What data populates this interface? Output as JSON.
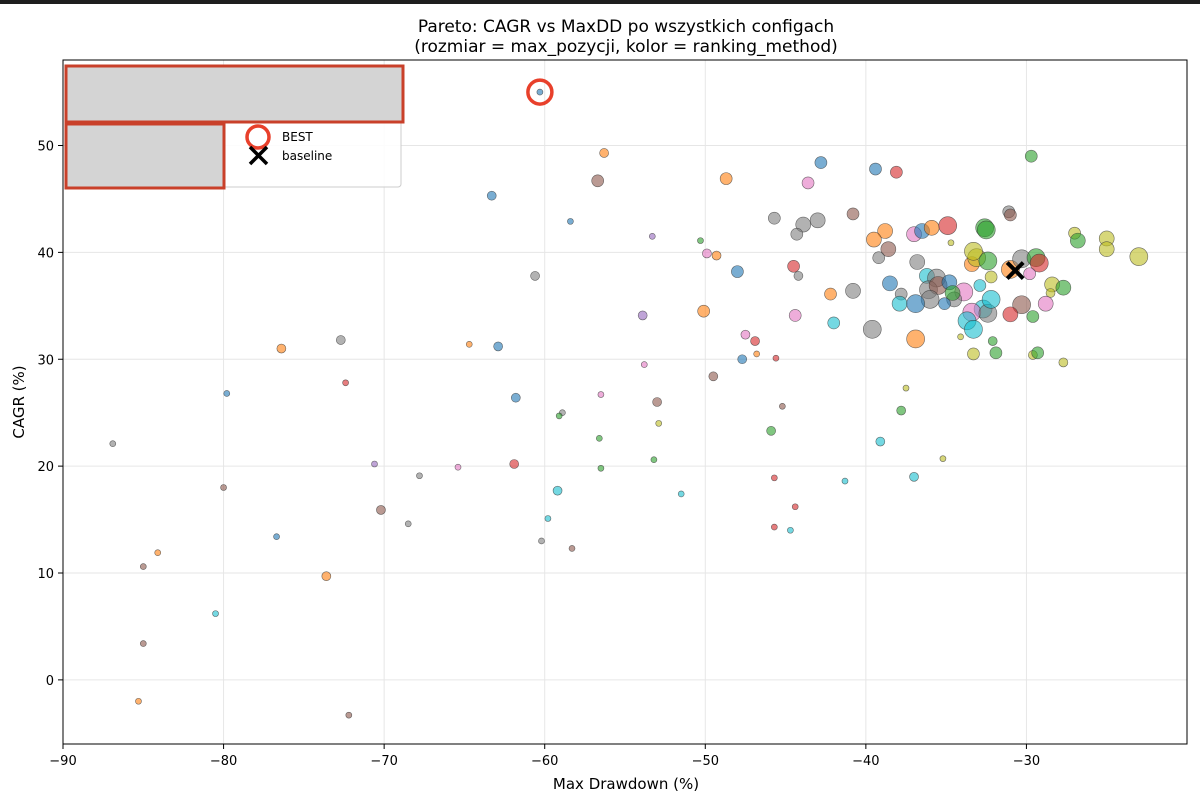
{
  "chart_data": {
    "type": "scatter",
    "title_lines": [
      "Pareto: CAGR vs MaxDD po wszystkich configach",
      "(rozmiar = max_pozycji, kolor = ranking_method)"
    ],
    "xlabel": "Max Drawdown (%)",
    "ylabel": "CAGR (%)",
    "xlim": [
      -90,
      -20
    ],
    "ylim": [
      -6,
      58
    ],
    "xticks": [
      -90,
      -80,
      -70,
      -60,
      -50,
      -40,
      -30
    ],
    "xtick_labels": [
      "−90",
      "−80",
      "−70",
      "−60",
      "−50",
      "−40",
      "−30"
    ],
    "yticks": [
      0,
      10,
      20,
      30,
      40,
      50
    ],
    "ytick_labels": [
      "0",
      "10",
      "20",
      "30",
      "40",
      "50"
    ],
    "grid": true,
    "legend": {
      "placement": "top-left",
      "entries": [
        {
          "label": "BEST",
          "marker": "open-circle",
          "color": "#e8402b"
        },
        {
          "label": "baseline",
          "marker": "x",
          "color": "#000000"
        }
      ]
    },
    "best": {
      "x": -60.3,
      "y": 55.0
    },
    "baseline": {
      "x": -30.7,
      "y": 38.3
    },
    "colors": {
      "blue": "#1f77b4",
      "orange": "#ff7f0e",
      "green": "#2ca02c",
      "red": "#d62728",
      "purple": "#9467bd",
      "brown": "#8c564b",
      "pink": "#e377c2",
      "gray": "#7f7f7f",
      "olive": "#bcbd22",
      "cyan": "#17becf"
    },
    "points": [
      {
        "x": -60.3,
        "y": 55.0,
        "s": 1,
        "c": "blue"
      },
      {
        "x": -56.3,
        "y": 49.3,
        "s": 2,
        "c": "orange"
      },
      {
        "x": -63.3,
        "y": 45.3,
        "s": 2,
        "c": "blue"
      },
      {
        "x": -58.4,
        "y": 42.9,
        "s": 1,
        "c": "blue"
      },
      {
        "x": -53.3,
        "y": 41.5,
        "s": 1,
        "c": "purple"
      },
      {
        "x": -50.3,
        "y": 41.1,
        "s": 1,
        "c": "green"
      },
      {
        "x": -49.3,
        "y": 39.7,
        "s": 2,
        "c": "orange"
      },
      {
        "x": -60.6,
        "y": 37.8,
        "s": 2,
        "c": "gray"
      },
      {
        "x": -56.7,
        "y": 46.7,
        "s": 3,
        "c": "brown"
      },
      {
        "x": -48.7,
        "y": 46.9,
        "s": 3,
        "c": "orange"
      },
      {
        "x": -43.6,
        "y": 46.5,
        "s": 3,
        "c": "pink"
      },
      {
        "x": -42.8,
        "y": 48.4,
        "s": 3,
        "c": "blue"
      },
      {
        "x": -39.4,
        "y": 47.8,
        "s": 3,
        "c": "blue"
      },
      {
        "x": -38.1,
        "y": 47.5,
        "s": 3,
        "c": "red"
      },
      {
        "x": -29.7,
        "y": 49.0,
        "s": 3,
        "c": "green"
      },
      {
        "x": -45.7,
        "y": 43.2,
        "s": 3,
        "c": "gray"
      },
      {
        "x": -43.9,
        "y": 42.6,
        "s": 4,
        "c": "gray"
      },
      {
        "x": -43.0,
        "y": 43.0,
        "s": 4,
        "c": "gray"
      },
      {
        "x": -44.3,
        "y": 41.7,
        "s": 3,
        "c": "gray"
      },
      {
        "x": -40.8,
        "y": 43.6,
        "s": 3,
        "c": "brown"
      },
      {
        "x": -38.8,
        "y": 42.0,
        "s": 4,
        "c": "orange"
      },
      {
        "x": -39.5,
        "y": 41.2,
        "s": 4,
        "c": "orange"
      },
      {
        "x": -38.6,
        "y": 40.3,
        "s": 4,
        "c": "brown"
      },
      {
        "x": -37.0,
        "y": 41.7,
        "s": 4,
        "c": "pink"
      },
      {
        "x": -36.5,
        "y": 42.0,
        "s": 4,
        "c": "blue"
      },
      {
        "x": -35.9,
        "y": 42.3,
        "s": 4,
        "c": "orange"
      },
      {
        "x": -34.9,
        "y": 42.5,
        "s": 5,
        "c": "red"
      },
      {
        "x": -32.6,
        "y": 42.3,
        "s": 5,
        "c": "green"
      },
      {
        "x": -32.5,
        "y": 42.1,
        "s": 5,
        "c": "green"
      },
      {
        "x": -31.1,
        "y": 43.8,
        "s": 3,
        "c": "gray"
      },
      {
        "x": -31.0,
        "y": 43.5,
        "s": 3,
        "c": "brown"
      },
      {
        "x": -34.7,
        "y": 40.9,
        "s": 1,
        "c": "olive"
      },
      {
        "x": -48.0,
        "y": 38.2,
        "s": 3,
        "c": "blue"
      },
      {
        "x": -44.5,
        "y": 38.7,
        "s": 3,
        "c": "red"
      },
      {
        "x": -44.2,
        "y": 37.8,
        "s": 2,
        "c": "gray"
      },
      {
        "x": -49.9,
        "y": 39.9,
        "s": 2,
        "c": "pink"
      },
      {
        "x": -39.2,
        "y": 39.5,
        "s": 3,
        "c": "gray"
      },
      {
        "x": -38.5,
        "y": 37.1,
        "s": 4,
        "c": "blue"
      },
      {
        "x": -37.8,
        "y": 36.1,
        "s": 3,
        "c": "gray"
      },
      {
        "x": -36.8,
        "y": 39.1,
        "s": 4,
        "c": "gray"
      },
      {
        "x": -36.2,
        "y": 37.8,
        "s": 4,
        "c": "cyan"
      },
      {
        "x": -35.6,
        "y": 37.6,
        "s": 5,
        "c": "gray"
      },
      {
        "x": -36.1,
        "y": 36.5,
        "s": 5,
        "c": "gray"
      },
      {
        "x": -35.5,
        "y": 36.9,
        "s": 5,
        "c": "brown"
      },
      {
        "x": -36.0,
        "y": 35.6,
        "s": 5,
        "c": "gray"
      },
      {
        "x": -34.8,
        "y": 37.2,
        "s": 4,
        "c": "blue"
      },
      {
        "x": -33.9,
        "y": 36.3,
        "s": 5,
        "c": "pink"
      },
      {
        "x": -33.4,
        "y": 38.9,
        "s": 4,
        "c": "orange"
      },
      {
        "x": -33.1,
        "y": 39.5,
        "s": 5,
        "c": "olive"
      },
      {
        "x": -33.3,
        "y": 40.1,
        "s": 5,
        "c": "olive"
      },
      {
        "x": -32.4,
        "y": 39.2,
        "s": 5,
        "c": "green"
      },
      {
        "x": -32.2,
        "y": 37.7,
        "s": 3,
        "c": "olive"
      },
      {
        "x": -31.0,
        "y": 38.4,
        "s": 5,
        "c": "orange"
      },
      {
        "x": -30.3,
        "y": 39.4,
        "s": 5,
        "c": "gray"
      },
      {
        "x": -29.4,
        "y": 39.5,
        "s": 5,
        "c": "green"
      },
      {
        "x": -29.2,
        "y": 39.0,
        "s": 5,
        "c": "red"
      },
      {
        "x": -29.8,
        "y": 38.0,
        "s": 3,
        "c": "pink"
      },
      {
        "x": -27.0,
        "y": 41.8,
        "s": 3,
        "c": "olive"
      },
      {
        "x": -26.8,
        "y": 41.1,
        "s": 4,
        "c": "green"
      },
      {
        "x": -25.0,
        "y": 41.3,
        "s": 4,
        "c": "olive"
      },
      {
        "x": -25.0,
        "y": 40.3,
        "s": 4,
        "c": "olive"
      },
      {
        "x": -23.0,
        "y": 39.6,
        "s": 5,
        "c": "olive"
      },
      {
        "x": -28.4,
        "y": 37.0,
        "s": 4,
        "c": "olive"
      },
      {
        "x": -28.5,
        "y": 36.2,
        "s": 2,
        "c": "olive"
      },
      {
        "x": -27.7,
        "y": 36.7,
        "s": 4,
        "c": "green"
      },
      {
        "x": -28.8,
        "y": 35.2,
        "s": 4,
        "c": "pink"
      },
      {
        "x": -30.3,
        "y": 35.1,
        "s": 5,
        "c": "brown"
      },
      {
        "x": -31.0,
        "y": 34.2,
        "s": 4,
        "c": "red"
      },
      {
        "x": -29.6,
        "y": 34.0,
        "s": 3,
        "c": "green"
      },
      {
        "x": -32.7,
        "y": 34.7,
        "s": 5,
        "c": "cyan"
      },
      {
        "x": -33.4,
        "y": 34.4,
        "s": 5,
        "c": "pink"
      },
      {
        "x": -32.4,
        "y": 34.3,
        "s": 5,
        "c": "gray"
      },
      {
        "x": -32.2,
        "y": 35.6,
        "s": 5,
        "c": "cyan"
      },
      {
        "x": -33.7,
        "y": 33.6,
        "s": 5,
        "c": "cyan"
      },
      {
        "x": -33.3,
        "y": 32.8,
        "s": 5,
        "c": "cyan"
      },
      {
        "x": -32.9,
        "y": 36.9,
        "s": 3,
        "c": "cyan"
      },
      {
        "x": -34.5,
        "y": 35.6,
        "s": 4,
        "c": "gray"
      },
      {
        "x": -35.1,
        "y": 35.2,
        "s": 3,
        "c": "blue"
      },
      {
        "x": -34.6,
        "y": 36.2,
        "s": 4,
        "c": "green"
      },
      {
        "x": -37.9,
        "y": 35.2,
        "s": 4,
        "c": "cyan"
      },
      {
        "x": -36.9,
        "y": 35.2,
        "s": 5,
        "c": "blue"
      },
      {
        "x": -34.1,
        "y": 32.1,
        "s": 1,
        "c": "olive"
      },
      {
        "x": -33.3,
        "y": 30.5,
        "s": 3,
        "c": "olive"
      },
      {
        "x": -32.1,
        "y": 31.7,
        "s": 2,
        "c": "green"
      },
      {
        "x": -31.9,
        "y": 30.6,
        "s": 3,
        "c": "green"
      },
      {
        "x": -29.6,
        "y": 30.4,
        "s": 2,
        "c": "olive"
      },
      {
        "x": -29.3,
        "y": 30.6,
        "s": 3,
        "c": "green"
      },
      {
        "x": -27.7,
        "y": 29.7,
        "s": 2,
        "c": "olive"
      },
      {
        "x": -42.2,
        "y": 36.1,
        "s": 3,
        "c": "orange"
      },
      {
        "x": -40.8,
        "y": 36.4,
        "s": 4,
        "c": "gray"
      },
      {
        "x": -39.6,
        "y": 32.8,
        "s": 5,
        "c": "gray"
      },
      {
        "x": -36.9,
        "y": 31.9,
        "s": 5,
        "c": "orange"
      },
      {
        "x": -42.0,
        "y": 33.4,
        "s": 3,
        "c": "cyan"
      },
      {
        "x": -44.4,
        "y": 34.1,
        "s": 3,
        "c": "pink"
      },
      {
        "x": -50.1,
        "y": 34.5,
        "s": 3,
        "c": "orange"
      },
      {
        "x": -53.9,
        "y": 34.1,
        "s": 2,
        "c": "purple"
      },
      {
        "x": -47.5,
        "y": 32.3,
        "s": 2,
        "c": "pink"
      },
      {
        "x": -46.9,
        "y": 31.7,
        "s": 2,
        "c": "red"
      },
      {
        "x": -46.8,
        "y": 30.5,
        "s": 1,
        "c": "orange"
      },
      {
        "x": -47.7,
        "y": 30.0,
        "s": 2,
        "c": "blue"
      },
      {
        "x": -45.6,
        "y": 30.1,
        "s": 1,
        "c": "red"
      },
      {
        "x": -49.5,
        "y": 28.4,
        "s": 2,
        "c": "brown"
      },
      {
        "x": -62.9,
        "y": 31.2,
        "s": 2,
        "c": "blue"
      },
      {
        "x": -64.7,
        "y": 31.4,
        "s": 1,
        "c": "orange"
      },
      {
        "x": -72.7,
        "y": 31.8,
        "s": 2,
        "c": "gray"
      },
      {
        "x": -76.4,
        "y": 31.0,
        "s": 2,
        "c": "orange"
      },
      {
        "x": -72.4,
        "y": 27.8,
        "s": 1,
        "c": "red"
      },
      {
        "x": -79.8,
        "y": 26.8,
        "s": 1,
        "c": "blue"
      },
      {
        "x": -86.9,
        "y": 22.1,
        "s": 1,
        "c": "gray"
      },
      {
        "x": -61.8,
        "y": 26.4,
        "s": 2,
        "c": "blue"
      },
      {
        "x": -58.9,
        "y": 25.0,
        "s": 1,
        "c": "gray"
      },
      {
        "x": -59.1,
        "y": 24.7,
        "s": 1,
        "c": "green"
      },
      {
        "x": -56.6,
        "y": 22.6,
        "s": 1,
        "c": "green"
      },
      {
        "x": -56.5,
        "y": 26.7,
        "s": 1,
        "c": "pink"
      },
      {
        "x": -53.8,
        "y": 29.5,
        "s": 1,
        "c": "pink"
      },
      {
        "x": -53.0,
        "y": 26.0,
        "s": 2,
        "c": "brown"
      },
      {
        "x": -52.9,
        "y": 24.0,
        "s": 1,
        "c": "olive"
      },
      {
        "x": -53.2,
        "y": 20.6,
        "s": 1,
        "c": "green"
      },
      {
        "x": -56.5,
        "y": 19.8,
        "s": 1,
        "c": "green"
      },
      {
        "x": -61.9,
        "y": 20.2,
        "s": 2,
        "c": "red"
      },
      {
        "x": -59.2,
        "y": 17.7,
        "s": 2,
        "c": "cyan"
      },
      {
        "x": -51.5,
        "y": 17.4,
        "s": 1,
        "c": "cyan"
      },
      {
        "x": -59.8,
        "y": 15.1,
        "s": 1,
        "c": "cyan"
      },
      {
        "x": -60.2,
        "y": 13.0,
        "s": 1,
        "c": "gray"
      },
      {
        "x": -58.3,
        "y": 12.3,
        "s": 1,
        "c": "brown"
      },
      {
        "x": -37.5,
        "y": 27.3,
        "s": 1,
        "c": "olive"
      },
      {
        "x": -37.8,
        "y": 25.2,
        "s": 2,
        "c": "green"
      },
      {
        "x": -45.2,
        "y": 25.6,
        "s": 1,
        "c": "brown"
      },
      {
        "x": -39.1,
        "y": 22.3,
        "s": 2,
        "c": "cyan"
      },
      {
        "x": -35.2,
        "y": 20.7,
        "s": 1,
        "c": "olive"
      },
      {
        "x": -45.9,
        "y": 23.3,
        "s": 2,
        "c": "green"
      },
      {
        "x": -37.0,
        "y": 19.0,
        "s": 2,
        "c": "cyan"
      },
      {
        "x": -41.3,
        "y": 18.6,
        "s": 1,
        "c": "cyan"
      },
      {
        "x": -45.7,
        "y": 18.9,
        "s": 1,
        "c": "red"
      },
      {
        "x": -44.4,
        "y": 16.2,
        "s": 1,
        "c": "red"
      },
      {
        "x": -45.7,
        "y": 14.3,
        "s": 1,
        "c": "red"
      },
      {
        "x": -44.7,
        "y": 14.0,
        "s": 1,
        "c": "cyan"
      },
      {
        "x": -65.4,
        "y": 19.9,
        "s": 1,
        "c": "pink"
      },
      {
        "x": -67.8,
        "y": 19.1,
        "s": 1,
        "c": "gray"
      },
      {
        "x": -70.6,
        "y": 20.2,
        "s": 1,
        "c": "purple"
      },
      {
        "x": -70.2,
        "y": 15.9,
        "s": 2,
        "c": "brown"
      },
      {
        "x": -68.5,
        "y": 14.6,
        "s": 1,
        "c": "gray"
      },
      {
        "x": -80.0,
        "y": 18.0,
        "s": 1,
        "c": "brown"
      },
      {
        "x": -76.7,
        "y": 13.4,
        "s": 1,
        "c": "blue"
      },
      {
        "x": -84.1,
        "y": 11.9,
        "s": 1,
        "c": "orange"
      },
      {
        "x": -85.0,
        "y": 10.6,
        "s": 1,
        "c": "brown"
      },
      {
        "x": -73.6,
        "y": 9.7,
        "s": 2,
        "c": "orange"
      },
      {
        "x": -80.5,
        "y": 6.2,
        "s": 1,
        "c": "cyan"
      },
      {
        "x": -85.0,
        "y": 3.4,
        "s": 1,
        "c": "brown"
      },
      {
        "x": -85.3,
        "y": -2.0,
        "s": 1,
        "c": "orange"
      },
      {
        "x": -72.2,
        "y": -3.3,
        "s": 1,
        "c": "brown"
      }
    ]
  }
}
